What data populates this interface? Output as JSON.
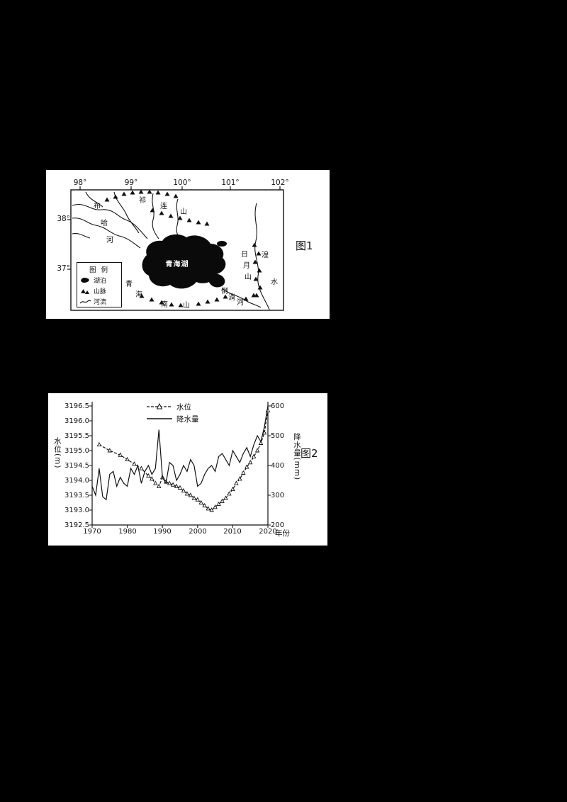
{
  "page": {
    "background": "#000000",
    "paper": "#ffffff",
    "ink": "#111111"
  },
  "figure1": {
    "caption": "图1",
    "lon_labels": [
      "98°",
      "99°",
      "100°",
      "101°",
      "102°"
    ],
    "lat_labels": [
      "38°",
      "37°"
    ],
    "lake_name": "青海湖",
    "labels": {
      "qilianshan": [
        "祁",
        "连",
        "山"
      ],
      "buhahe": [
        "布",
        "哈",
        "河"
      ],
      "riyueshan": [
        "日",
        "月",
        "山"
      ],
      "huangshui": [
        "湟",
        "水"
      ],
      "daotanghe": [
        "倒",
        "淌",
        "河"
      ],
      "qinghainanshan": [
        "青",
        "海",
        "南",
        "山"
      ]
    },
    "legend": {
      "title": "图 例",
      "items": [
        {
          "symbol": "lake-swatch",
          "label": "湖泊"
        },
        {
          "symbol": "mountain-swatch",
          "label": "山脉"
        },
        {
          "symbol": "river-swatch",
          "label": "河流"
        }
      ]
    }
  },
  "figure2": {
    "caption": "图2",
    "legend": [
      {
        "name": "水位",
        "marker": "triangle-dashed-line"
      },
      {
        "name": "降水量",
        "marker": "solid-line"
      }
    ],
    "left_axis_title": "水位(m)",
    "right_axis_title": "降水量(mm)",
    "x_axis_title": "年份"
  },
  "chart_data": {
    "type": "line",
    "title": "",
    "x_label": "年份",
    "x_range": [
      1970,
      2020
    ],
    "x_ticks": [
      1970,
      1980,
      1990,
      2000,
      2010,
      2020
    ],
    "x_tick_labels": [
      "1970",
      "1980",
      "1990",
      "2000",
      "2010",
      "2020"
    ],
    "grid": false,
    "legend_position": "top-center",
    "left_axis": {
      "label": "水位(m)",
      "min": 3192.5,
      "max": 3196.5,
      "tick_labels": [
        "3196.5",
        "3196.0",
        "3195.5",
        "3195.0",
        "3194.5",
        "3194.0",
        "3193.5",
        "3193.0",
        "3192.5"
      ]
    },
    "right_axis": {
      "label": "降水量(mm)",
      "min": 200,
      "max": 600,
      "tick_labels": [
        "600",
        "500",
        "400",
        "300",
        "200"
      ]
    },
    "series": [
      {
        "name": "水位",
        "axis": "left",
        "marker": "triangle",
        "line": "dashed",
        "x": [
          1972,
          1975,
          1978,
          1980,
          1982,
          1984,
          1986,
          1987,
          1988,
          1989,
          1990,
          1991,
          1992,
          1993,
          1994,
          1995,
          1996,
          1997,
          1998,
          1999,
          2000,
          2001,
          2002,
          2003,
          2004,
          2005,
          2006,
          2007,
          2008,
          2009,
          2010,
          2011,
          2012,
          2013,
          2014,
          2015,
          2016,
          2017,
          2018,
          2019,
          2020
        ],
        "y": [
          3195.2,
          3195.0,
          3194.85,
          3194.7,
          3194.55,
          3194.4,
          3194.15,
          3194.05,
          3193.9,
          3193.8,
          3194.1,
          3193.95,
          3193.9,
          3193.85,
          3193.8,
          3193.75,
          3193.65,
          3193.55,
          3193.5,
          3193.4,
          3193.35,
          3193.25,
          3193.15,
          3193.05,
          3193.0,
          3193.1,
          3193.2,
          3193.3,
          3193.4,
          3193.55,
          3193.7,
          3193.9,
          3194.05,
          3194.25,
          3194.45,
          3194.6,
          3194.8,
          3195.0,
          3195.25,
          3195.6,
          3196.35
        ]
      },
      {
        "name": "降水量",
        "axis": "right",
        "marker": "none",
        "line": "solid",
        "x": [
          1970,
          1971,
          1972,
          1973,
          1974,
          1975,
          1976,
          1977,
          1978,
          1979,
          1980,
          1981,
          1982,
          1983,
          1984,
          1985,
          1986,
          1987,
          1988,
          1989,
          1990,
          1991,
          1992,
          1993,
          1994,
          1995,
          1996,
          1997,
          1998,
          1999,
          2000,
          2001,
          2002,
          2003,
          2004,
          2005,
          2006,
          2007,
          2008,
          2009,
          2010,
          2011,
          2012,
          2013,
          2014,
          2015,
          2016,
          2017,
          2018,
          2019,
          2020
        ],
        "y": [
          330,
          300,
          390,
          295,
          285,
          370,
          380,
          330,
          360,
          340,
          330,
          390,
          370,
          400,
          340,
          380,
          400,
          370,
          390,
          520,
          360,
          340,
          410,
          400,
          350,
          370,
          400,
          380,
          420,
          400,
          330,
          340,
          370,
          390,
          400,
          380,
          430,
          440,
          420,
          400,
          450,
          430,
          410,
          440,
          460,
          430,
          470,
          500,
          480,
          530,
          600
        ]
      }
    ]
  }
}
